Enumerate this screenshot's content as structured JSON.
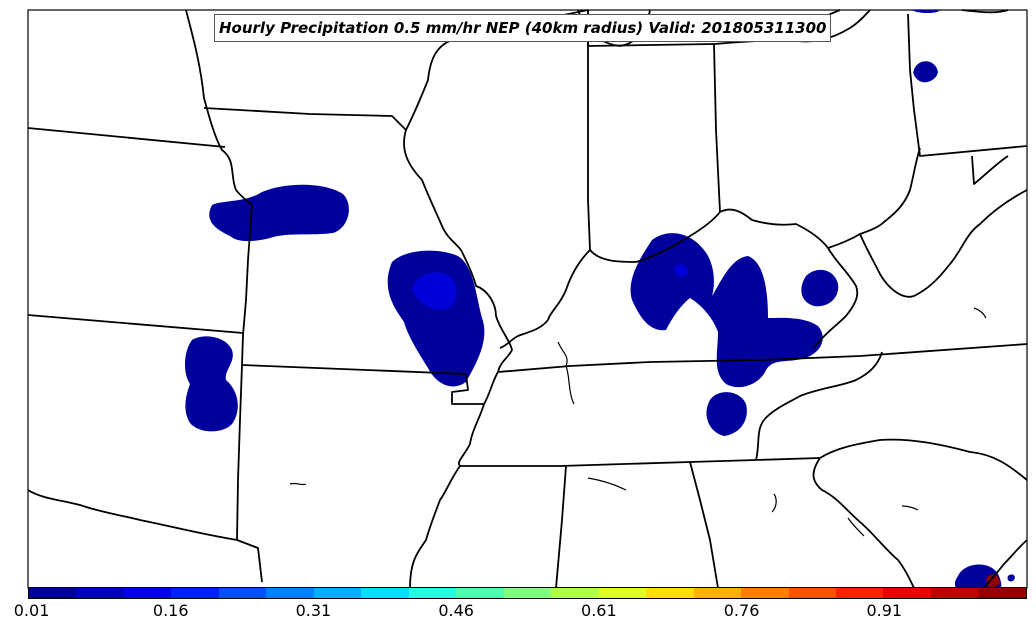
{
  "title": "Hourly Precipitation 0.5 mm/hr NEP (40km radius) Valid: 201805311300",
  "colorbar": {
    "ticks": [
      "0.01",
      "0.16",
      "0.31",
      "0.46",
      "0.61",
      "0.76",
      "0.91"
    ],
    "colors": [
      "#00008f",
      "#0000bf",
      "#0000ef",
      "#0020ff",
      "#0050ff",
      "#0080ff",
      "#00b0ff",
      "#00e0ff",
      "#20ffdf",
      "#50ffaf",
      "#80ff80",
      "#afff50",
      "#dfff20",
      "#ffe000",
      "#ffb000",
      "#ff8000",
      "#ff5000",
      "#ff2000",
      "#ef0000",
      "#bf0000",
      "#8f0000"
    ]
  },
  "map": {
    "land_color": "#ffffff",
    "border_color": "#000000",
    "nep_colors": {
      "low": "#00009c",
      "mid": "#0000d8",
      "high": "#8f0000"
    }
  }
}
